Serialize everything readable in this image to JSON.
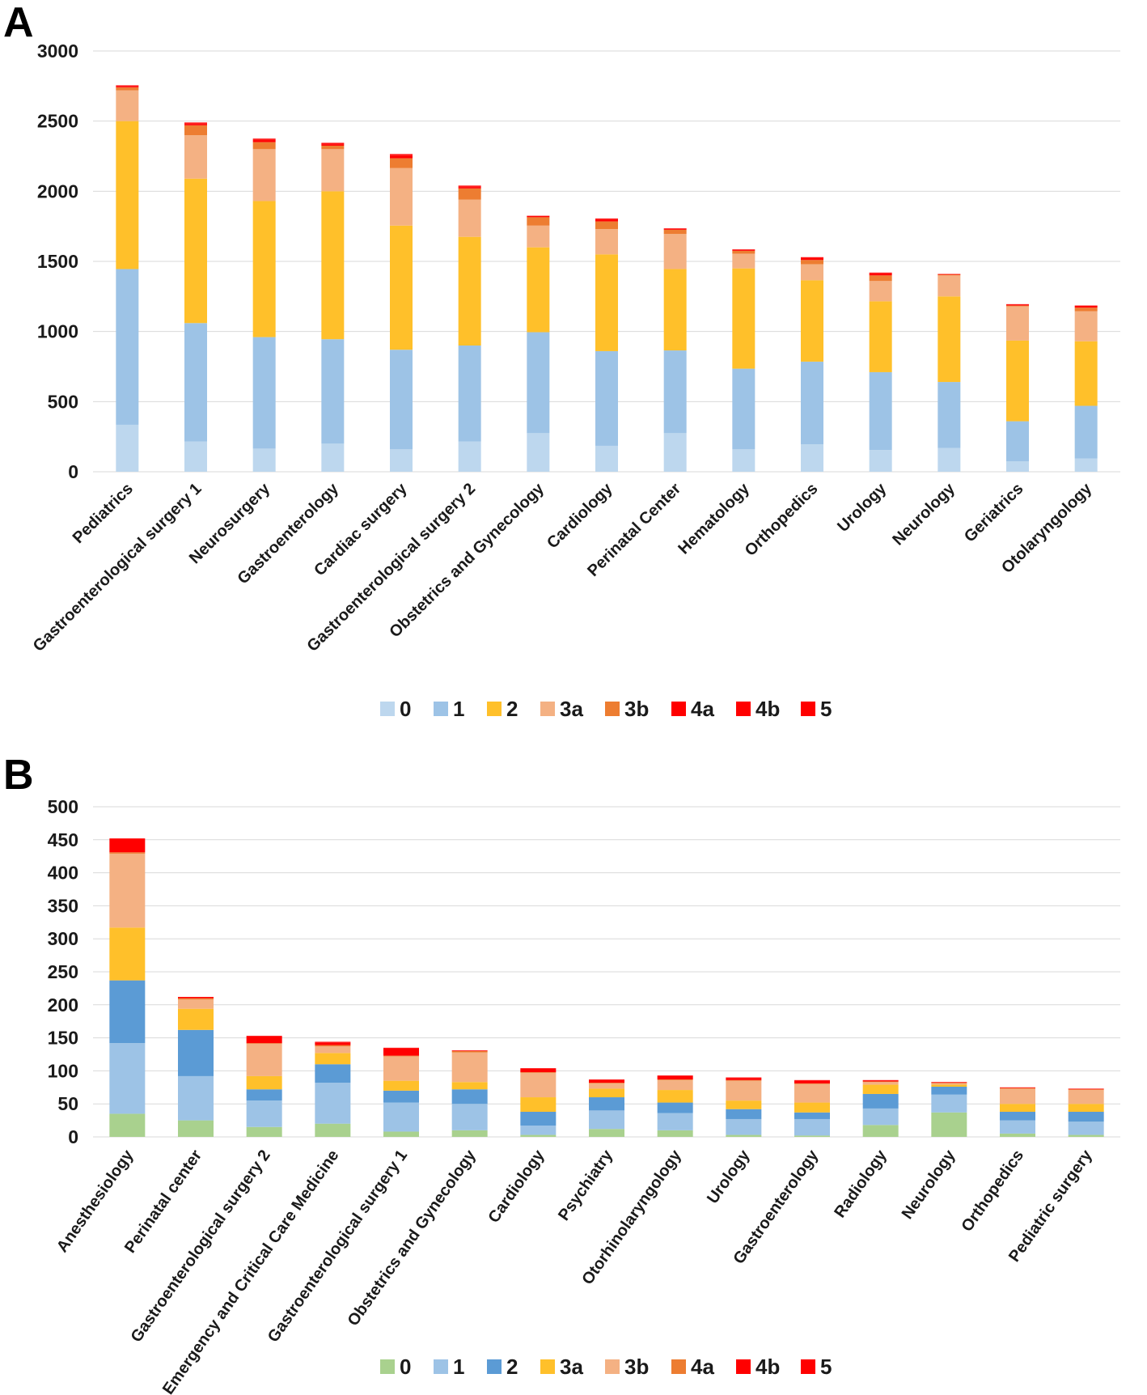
{
  "chart_data": [
    {
      "panel": "A",
      "type": "bar",
      "stacked": true,
      "title": "",
      "xlabel": "",
      "ylabel": "",
      "ylim": [
        0,
        3000
      ],
      "yticks": [
        0,
        500,
        1000,
        1500,
        2000,
        2500,
        3000
      ],
      "grid": true,
      "legend_position": "bottom",
      "categories": [
        "Pediatrics",
        "Gastroenterological surgery 1",
        "Neurosurgery",
        "Gastroenterology",
        "Cardiac surgery",
        "Gastroenterological surgery 2",
        "Obstetrics and Gynecology",
        "Cardiology",
        "Perinatal Center",
        "Hematology",
        "Orthopedics",
        "Urology",
        "Neurology",
        "Geriatrics",
        "Otolaryngology"
      ],
      "series": [
        {
          "name": "0",
          "color": "#bdd7ee",
          "values": [
            335,
            215,
            165,
            200,
            160,
            215,
            275,
            185,
            275,
            160,
            195,
            155,
            170,
            75,
            95
          ]
        },
        {
          "name": "1",
          "color": "#9dc3e6",
          "values": [
            1110,
            845,
            795,
            745,
            710,
            685,
            720,
            675,
            590,
            575,
            590,
            555,
            470,
            285,
            375
          ]
        },
        {
          "name": "2",
          "color": "#ffc02a",
          "values": [
            1055,
            1030,
            970,
            1055,
            885,
            775,
            605,
            690,
            580,
            715,
            580,
            505,
            610,
            575,
            460
          ]
        },
        {
          "name": "3a",
          "color": "#f4b183",
          "values": [
            220,
            310,
            370,
            300,
            410,
            265,
            155,
            180,
            250,
            105,
            115,
            145,
            150,
            245,
            215
          ]
        },
        {
          "name": "3b",
          "color": "#ed7d31",
          "values": [
            20,
            70,
            50,
            25,
            70,
            80,
            60,
            55,
            30,
            20,
            30,
            40,
            5,
            5,
            25
          ]
        },
        {
          "name": "4a",
          "color": "#ff0000",
          "values": [
            5,
            10,
            15,
            10,
            20,
            10,
            5,
            10,
            5,
            5,
            10,
            10,
            0,
            5,
            10
          ]
        },
        {
          "name": "4b",
          "color": "#ff0000",
          "values": [
            5,
            5,
            5,
            5,
            5,
            5,
            5,
            5,
            5,
            5,
            5,
            5,
            5,
            5,
            5
          ]
        },
        {
          "name": "5",
          "color": "#ff0000",
          "values": [
            5,
            5,
            5,
            5,
            5,
            5,
            0,
            5,
            0,
            0,
            5,
            5,
            0,
            0,
            0
          ]
        }
      ]
    },
    {
      "panel": "B",
      "type": "bar",
      "stacked": true,
      "title": "",
      "xlabel": "",
      "ylabel": "",
      "ylim": [
        0,
        500
      ],
      "yticks": [
        0,
        50,
        100,
        150,
        200,
        250,
        300,
        350,
        400,
        450,
        500
      ],
      "grid": true,
      "legend_position": "bottom",
      "categories": [
        "Anesthesiology",
        "Perinatal center",
        "Gastroenterological surgery 2",
        "Emergency and Critical Care Medicine",
        "Gastroenterological surgery 1",
        "Obstetrics and Gynecology",
        "Cardiology",
        "Psychiatry",
        "Otorhinolaryngology",
        "Urology",
        "Gastroenterology",
        "Radiology",
        "Neurology",
        "Orthopedics",
        "Pediatric surgery"
      ],
      "series": [
        {
          "name": "0",
          "color": "#a9d18e",
          "values": [
            35,
            25,
            15,
            20,
            8,
            10,
            3,
            12,
            10,
            3,
            2,
            18,
            37,
            5,
            3
          ]
        },
        {
          "name": "1",
          "color": "#9dc3e6",
          "values": [
            107,
            67,
            40,
            62,
            44,
            40,
            14,
            28,
            26,
            24,
            25,
            25,
            27,
            20,
            20
          ]
        },
        {
          "name": "2",
          "color": "#5b9bd5",
          "values": [
            95,
            70,
            17,
            28,
            18,
            22,
            21,
            20,
            16,
            15,
            10,
            22,
            12,
            13,
            15
          ]
        },
        {
          "name": "3a",
          "color": "#ffc02a",
          "values": [
            80,
            32,
            20,
            17,
            15,
            11,
            22,
            13,
            19,
            13,
            15,
            14,
            3,
            12,
            12
          ]
        },
        {
          "name": "3b",
          "color": "#f4b183",
          "values": [
            112,
            14,
            49,
            10,
            37,
            45,
            37,
            8,
            15,
            30,
            28,
            4,
            2,
            23,
            21
          ]
        },
        {
          "name": "4a",
          "color": "#ed7d31",
          "values": [
            2,
            2,
            1,
            2,
            1,
            2,
            1,
            1,
            1,
            1,
            1,
            1,
            1,
            1,
            1
          ]
        },
        {
          "name": "4b",
          "color": "#ff0000",
          "values": [
            20,
            2,
            10,
            4,
            11,
            1,
            5,
            4,
            5,
            3,
            4,
            1,
            1,
            1,
            1
          ]
        },
        {
          "name": "5",
          "color": "#ff0000",
          "values": [
            1,
            0,
            1,
            1,
            1,
            0,
            1,
            1,
            1,
            1,
            1,
            1,
            0,
            0,
            0
          ]
        }
      ]
    }
  ],
  "panels": [
    {
      "letter": "A",
      "legend": [
        "0",
        "1",
        "2",
        "3a",
        "3b",
        "4a",
        "4b",
        "5"
      ]
    },
    {
      "letter": "B",
      "legend": [
        "0",
        "1",
        "2",
        "3a",
        "3b",
        "4a",
        "4b",
        "5"
      ]
    }
  ]
}
